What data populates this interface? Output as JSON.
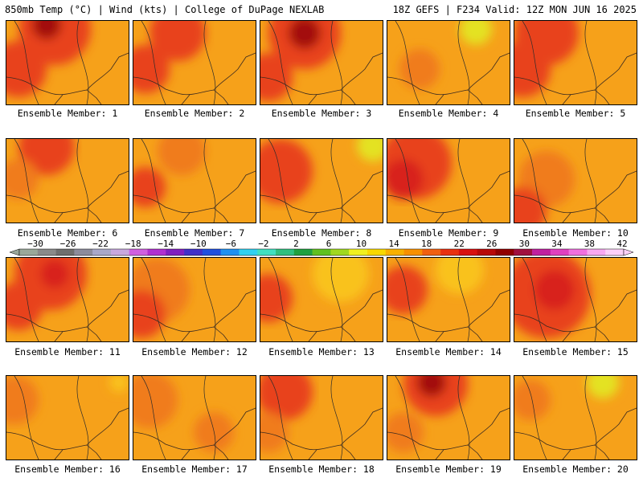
{
  "header": {
    "left": "850mb Temp (°C) | Wind (kts) | College of DuPage NEXLAB",
    "right": "18Z GEFS | F234 Valid: 12Z MON JUN 16 2025"
  },
  "members": [
    "Ensemble Member: 1",
    "Ensemble Member: 2",
    "Ensemble Member: 3",
    "Ensemble Member: 4",
    "Ensemble Member: 5",
    "Ensemble Member: 6",
    "Ensemble Member: 7",
    "Ensemble Member: 8",
    "Ensemble Member: 9",
    "Ensemble Member: 10",
    "Ensemble Member: 11",
    "Ensemble Member: 12",
    "Ensemble Member: 13",
    "Ensemble Member: 14",
    "Ensemble Member: 15",
    "Ensemble Member: 16",
    "Ensemble Member: 17",
    "Ensemble Member: 18",
    "Ensemble Member: 19",
    "Ensemble Member: 20"
  ],
  "colorbar": {
    "labels": [
      "-30",
      "-26",
      "-22",
      "-18",
      "-14",
      "-10",
      "-6",
      "-2",
      "2",
      "6",
      "10",
      "14",
      "18",
      "22",
      "26",
      "30",
      "34",
      "38",
      "42"
    ],
    "colors": [
      "#9aa89a",
      "#8a8a8a",
      "#6f6f6f",
      "#8c8c9c",
      "#a8a8c8",
      "#c8a8e0",
      "#d060e0",
      "#b030d0",
      "#8020c0",
      "#4030c8",
      "#2050e0",
      "#2090f0",
      "#30d0f0",
      "#40e0c0",
      "#30c080",
      "#20a040",
      "#60c020",
      "#a0d820",
      "#f0f020",
      "#f8d800",
      "#f8b000",
      "#f89000",
      "#f06010",
      "#e83010",
      "#d81010",
      "#b80808",
      "#900000",
      "#a01040",
      "#c020a0",
      "#e040c0",
      "#f070e0",
      "#f8a8f0",
      "#fcd0f8"
    ]
  },
  "palette": {
    "base": "#f6a11a",
    "warm": "#f07c1a",
    "hot": "#e8421a",
    "hotter": "#d8201a",
    "max": "#a31010",
    "cool": "#f9c21c",
    "coolest": "#e4e223"
  }
}
